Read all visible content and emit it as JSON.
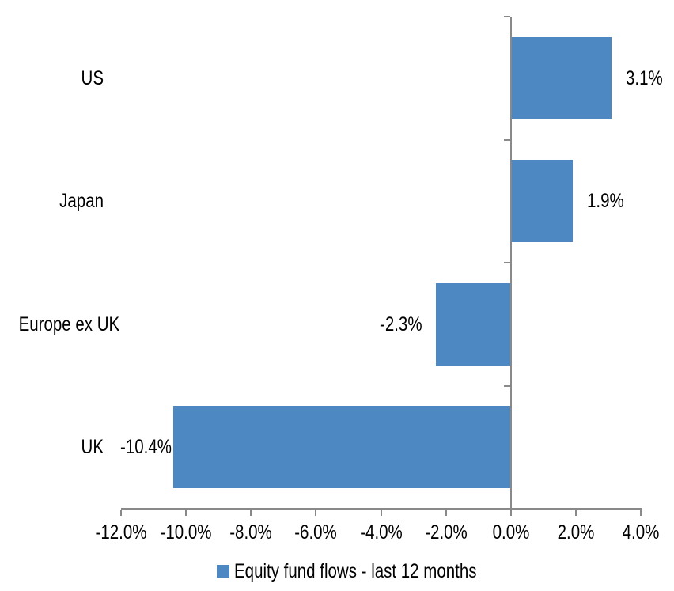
{
  "chart_data": {
    "type": "bar",
    "orientation": "horizontal",
    "title": "",
    "xlabel": "",
    "ylabel": "",
    "xlim": [
      -12,
      4
    ],
    "grid": false,
    "legend_position": "bottom",
    "legend": "Equity fund flows - last 12 months",
    "categories": [
      "US",
      "Japan",
      "Europe ex UK",
      "UK"
    ],
    "values": [
      3.1,
      1.9,
      -2.3,
      -10.4
    ],
    "series": [
      {
        "name": "Equity fund flows - last 12 months",
        "points": [
          {
            "category": "US",
            "value": 3.1,
            "label": "3.1%"
          },
          {
            "category": "Japan",
            "value": 1.9,
            "label": "1.9%"
          },
          {
            "category": "Europe ex UK",
            "value": -2.3,
            "label": "-2.3%"
          },
          {
            "category": "UK",
            "value": -10.4,
            "label": "-10.4%"
          }
        ]
      }
    ],
    "x_ticks": [
      {
        "value": -12,
        "label": "-12.0%"
      },
      {
        "value": -10,
        "label": "-10.0%"
      },
      {
        "value": -8,
        "label": "-8.0%"
      },
      {
        "value": -6,
        "label": "-6.0%"
      },
      {
        "value": -4,
        "label": "-4.0%"
      },
      {
        "value": -2,
        "label": "-2.0%"
      },
      {
        "value": 0,
        "label": "0.0%"
      },
      {
        "value": 2,
        "label": "2.0%"
      },
      {
        "value": 4,
        "label": "4.0%"
      }
    ],
    "colors": {
      "bar": "#4E88C2",
      "axis": "#898989",
      "text": "#000000",
      "background": "#ffffff"
    }
  }
}
